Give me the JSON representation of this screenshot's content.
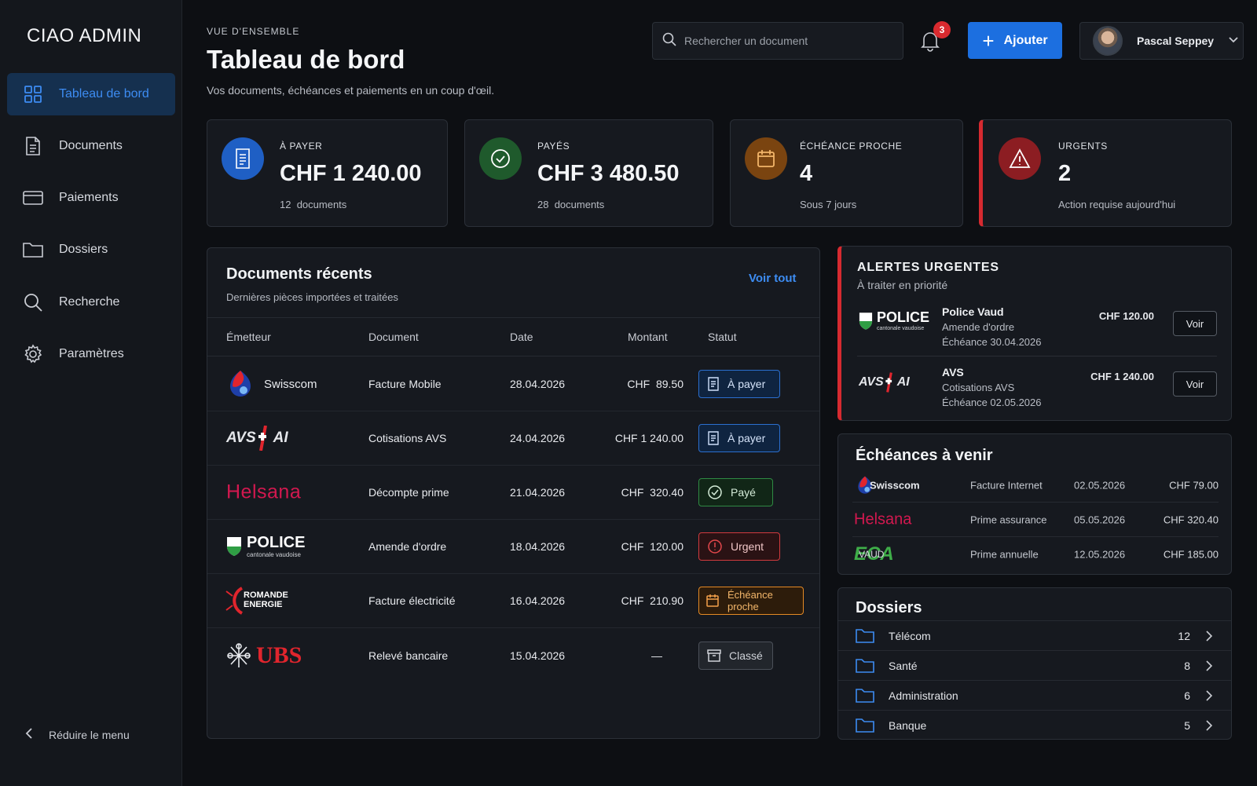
{
  "app": {
    "brand": "CIAO ADMIN"
  },
  "sidebar": {
    "items": [
      {
        "label": "Tableau de bord",
        "icon": "grid-icon",
        "active": true
      },
      {
        "label": "Documents",
        "icon": "document-icon"
      },
      {
        "label": "Paiements",
        "icon": "credit-card-icon"
      },
      {
        "label": "Dossiers",
        "icon": "folder-icon"
      },
      {
        "label": "Recherche",
        "icon": "search-icon"
      },
      {
        "label": "Paramètres",
        "icon": "gear-icon"
      }
    ],
    "collapse_label": "Réduire le menu"
  },
  "header": {
    "eyebrow": "VUE D'ENSEMBLE",
    "title": "Tableau de bord",
    "subtitle": "Vos documents, échéances et paiements en un coup d'œil.",
    "search_placeholder": "Rechercher un document",
    "notifications": "3",
    "add_label": "Ajouter",
    "user_name": "Pascal Seppey"
  },
  "colors": {
    "accent": "#1c6fe0",
    "accent_text": "#3d8cf2",
    "urgent": "#d62a30",
    "success": "#2f8a43",
    "warning": "#e58a24"
  },
  "cards": [
    {
      "label": "À PAYER",
      "value": "CHF 1 240.00",
      "count": "12",
      "count_label": "documents",
      "icon": "receipt-icon",
      "color": "#1f5fc4"
    },
    {
      "label": "PAYÉS",
      "value": "CHF 3 480.50",
      "count": "28",
      "count_label": "documents",
      "icon": "check-circle-icon",
      "color": "#1f5a2c"
    },
    {
      "label": "ÉCHÉANCE PROCHE",
      "value": "4",
      "sub": "Sous 7 jours",
      "icon": "calendar-icon",
      "color": "#7a4410"
    },
    {
      "label": "URGENTS",
      "value": "2",
      "sub": "Action requise aujourd'hui",
      "icon": "warning-icon",
      "color": "#8c1d22"
    }
  ],
  "recent": {
    "title": "Documents récents",
    "subtitle": "Dernières pièces importées et traitées",
    "view_all": "Voir tout",
    "columns": [
      "Émetteur",
      "Document",
      "Date",
      "Montant",
      "Statut"
    ],
    "rows": [
      {
        "issuer": "Swisscom",
        "document": "Facture Mobile",
        "date": "28.04.2026",
        "amount": "CHF  89.50",
        "status": "À payer",
        "status_type": "blue"
      },
      {
        "issuer": "AVS AI",
        "document": "Cotisations AVS",
        "date": "24.04.2026",
        "amount": "CHF 1 240.00",
        "status": "À payer",
        "status_type": "blue"
      },
      {
        "issuer": "Helsana",
        "document": "Décompte prime",
        "date": "21.04.2026",
        "amount": "CHF  320.40",
        "status": "Payé",
        "status_type": "green"
      },
      {
        "issuer": "POLICE",
        "document": "Amende d'ordre",
        "date": "18.04.2026",
        "amount": "CHF  120.00",
        "status": "Urgent",
        "status_type": "red"
      },
      {
        "issuer": "ROMANDE ENERGIE",
        "document": "Facture électricité",
        "date": "16.04.2026",
        "amount": "CHF  210.90",
        "status": "Échéance proche",
        "status_type": "orange"
      },
      {
        "issuer": "UBS",
        "document": "Relevé bancaire",
        "date": "15.04.2026",
        "amount": "—",
        "status": "Classé",
        "status_type": "grey"
      }
    ]
  },
  "logos": {
    "police_sub": "cantonale vaudoise",
    "avs": "AVS",
    "ai": "AI",
    "romande_1": "ROMANDE",
    "romande_2": "ENERGIE",
    "eca": "ECA",
    "vaud": "VAUD"
  },
  "alerts": {
    "title": "ALERTES URGENTES",
    "subtitle": "À traiter en priorité",
    "items": [
      {
        "name": "Police Vaud",
        "line2": "Amende d'ordre",
        "line3": "Échéance 30.04.2026",
        "amount": "CHF 120.00",
        "action": "Voir"
      },
      {
        "name": "AVS",
        "line2": "Cotisations AVS",
        "line3": "Échéance 02.05.2026",
        "amount": "CHF 1 240.00",
        "action": "Voir"
      }
    ]
  },
  "upcoming": {
    "title": "Échéances à venir",
    "items": [
      {
        "issuer": "Swisscom",
        "document": "Facture Internet",
        "date": "02.05.2026",
        "amount": "CHF 79.00"
      },
      {
        "issuer": "Helsana",
        "document": "Prime assurance",
        "date": "05.05.2026",
        "amount": "CHF 320.40"
      },
      {
        "issuer": "ECA VAUD",
        "document": "Prime annuelle",
        "date": "12.05.2026",
        "amount": "CHF 185.00"
      }
    ]
  },
  "folders": {
    "title": "Dossiers",
    "items": [
      {
        "name": "Télécom",
        "count": "12"
      },
      {
        "name": "Santé",
        "count": "8"
      },
      {
        "name": "Administration",
        "count": "6"
      },
      {
        "name": "Banque",
        "count": "5"
      }
    ]
  }
}
